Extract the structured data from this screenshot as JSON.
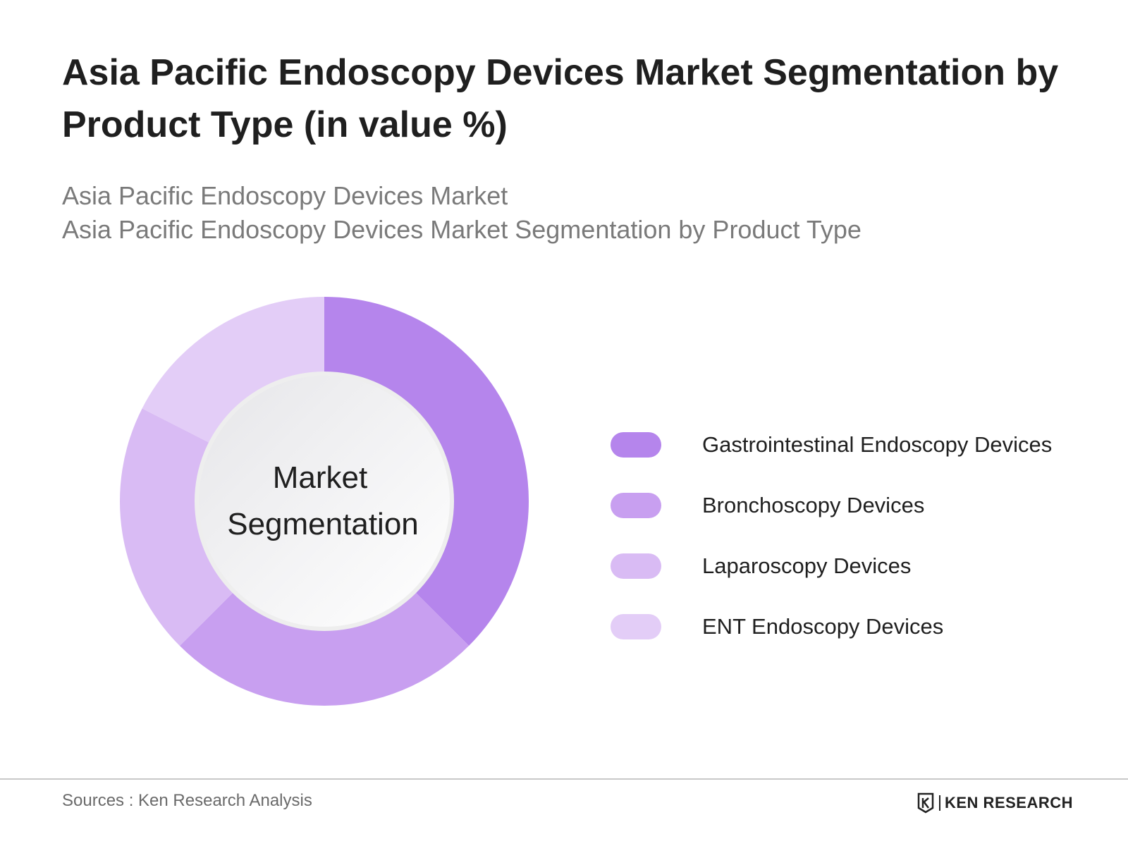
{
  "title": "Asia Pacific Endoscopy Devices Market Segmentation by Product Type (in value %)",
  "subtitle_lines": [
    "Asia Pacific Endoscopy Devices Market",
    "Asia Pacific Endoscopy Devices Market Segmentation by Product Type"
  ],
  "center_label": [
    "Market",
    "Segmentation"
  ],
  "chart_data": {
    "type": "pie",
    "donut": true,
    "categories": [
      "Gastrointestinal Endoscopy Devices",
      "Bronchoscopy Devices",
      "Laparoscopy Devices",
      "ENT Endoscopy Devices"
    ],
    "values": [
      37.5,
      25,
      20,
      17.5
    ],
    "colors": [
      "#b585ec",
      "#c89ff0",
      "#d9bbf4",
      "#e3cdf7"
    ],
    "legend_position": "right"
  },
  "source": "Sources : Ken Research Analysis",
  "logo": {
    "text": "KEN RESEARCH",
    "icon": "ken-research-logo-icon"
  }
}
